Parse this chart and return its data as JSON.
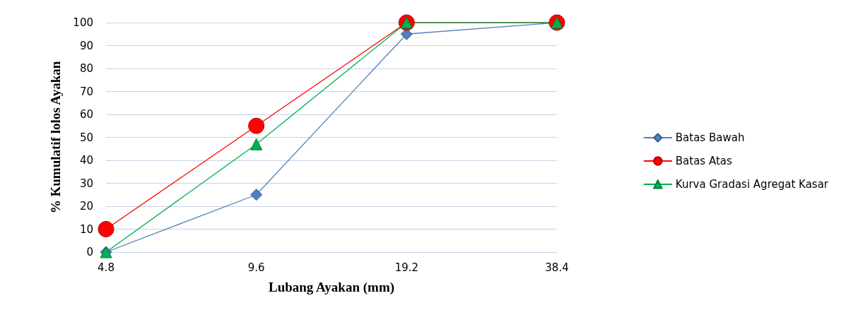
{
  "chart_data": {
    "type": "line",
    "xlabel": "Lubang Ayakan (mm)",
    "ylabel": "% Kumulatif lolos Ayakan",
    "categories": [
      "4.8",
      "9.6",
      "19.2",
      "38.4"
    ],
    "series": [
      {
        "name": "Batas Bawah",
        "color": "#4f81bd",
        "marker": "diamond",
        "values": [
          0,
          25,
          95,
          100
        ]
      },
      {
        "name": "Batas Atas",
        "color": "#ff0000",
        "marker": "circle",
        "values": [
          10,
          55,
          100,
          100
        ]
      },
      {
        "name": "Kurva Gradasi Agregat Kasar",
        "color": "#00b050",
        "marker": "triangle",
        "values": [
          0,
          47,
          100,
          100
        ]
      }
    ],
    "ylim": [
      0,
      100
    ],
    "yticks": [
      0,
      10,
      20,
      30,
      40,
      50,
      60,
      70,
      80,
      90,
      100
    ],
    "grid": "y",
    "legend": "right"
  }
}
